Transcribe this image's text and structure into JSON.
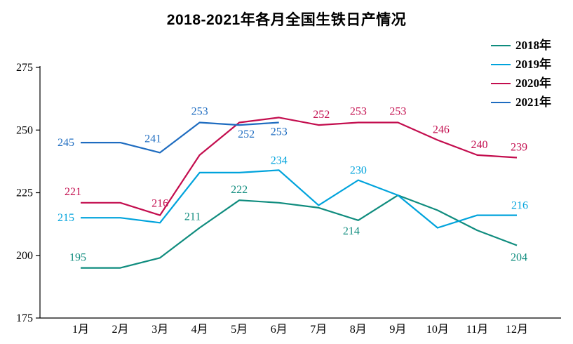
{
  "title": "2018-2021年各月全国生铁日产情况",
  "chart_data": {
    "type": "line",
    "title": "2018-2021年各月全国生铁日产情况",
    "xlabel": "",
    "ylabel": "",
    "categories": [
      "1月",
      "2月",
      "3月",
      "4月",
      "5月",
      "6月",
      "7月",
      "8月",
      "9月",
      "10月",
      "11月",
      "12月"
    ],
    "ylim": [
      175,
      275
    ],
    "yticks": [
      175,
      200,
      225,
      250,
      275
    ],
    "grid": false,
    "legend_position": "top-right",
    "series": [
      {
        "name": "2018年",
        "color": "#0f8c7e",
        "values": [
          195,
          195,
          199,
          211,
          222,
          221,
          219,
          214,
          224,
          218,
          210,
          204
        ],
        "labels": [
          {
            "i": 0,
            "text": "195",
            "pos": "above",
            "dx": -4,
            "dy": -2
          },
          {
            "i": 3,
            "text": "211",
            "pos": "above",
            "dx": -10,
            "dy": -3
          },
          {
            "i": 4,
            "text": "222",
            "pos": "above",
            "dx": 0,
            "dy": -2
          },
          {
            "i": 7,
            "text": "214",
            "pos": "below",
            "dx": -10,
            "dy": 2
          },
          {
            "i": 11,
            "text": "204",
            "pos": "below",
            "dx": 3,
            "dy": 4
          }
        ]
      },
      {
        "name": "2019年",
        "color": "#00a3dc",
        "values": [
          215,
          215,
          213,
          233,
          233,
          234,
          220,
          230,
          224,
          211,
          216,
          216
        ],
        "labels": [
          {
            "i": 0,
            "text": "215",
            "pos": "left",
            "dx": 0,
            "dy": 0
          },
          {
            "i": 5,
            "text": "234",
            "pos": "above",
            "dx": 0,
            "dy": -1
          },
          {
            "i": 7,
            "text": "230",
            "pos": "above",
            "dx": 0,
            "dy": -1
          },
          {
            "i": 11,
            "text": "216",
            "pos": "above",
            "dx": 4,
            "dy": -1
          }
        ]
      },
      {
        "name": "2020年",
        "color": "#c30d4e",
        "values": [
          221,
          221,
          216,
          240,
          253,
          255,
          252,
          253,
          253,
          246,
          240,
          239
        ],
        "labels": [
          {
            "i": 0,
            "text": "221",
            "pos": "above",
            "dx": -11,
            "dy": -3
          },
          {
            "i": 2,
            "text": "216",
            "pos": "above",
            "dx": 0,
            "dy": -4
          },
          {
            "i": 6,
            "text": "252",
            "pos": "above",
            "dx": 4,
            "dy": -2
          },
          {
            "i": 7,
            "text": "253",
            "pos": "above",
            "dx": 0,
            "dy": -3
          },
          {
            "i": 8,
            "text": "253",
            "pos": "above",
            "dx": 0,
            "dy": -3
          },
          {
            "i": 9,
            "text": "246",
            "pos": "above",
            "dx": 5,
            "dy": -2
          },
          {
            "i": 10,
            "text": "240",
            "pos": "above",
            "dx": 3,
            "dy": -2
          },
          {
            "i": 11,
            "text": "239",
            "pos": "above",
            "dx": 3,
            "dy": -2
          }
        ]
      },
      {
        "name": "2021年",
        "color": "#1e6cc0",
        "values": [
          245,
          245,
          241,
          253,
          252,
          253,
          null,
          null,
          null,
          null,
          null,
          null
        ],
        "labels": [
          {
            "i": 0,
            "text": "245",
            "pos": "left",
            "dx": 0,
            "dy": 0
          },
          {
            "i": 2,
            "text": "241",
            "pos": "above",
            "dx": -10,
            "dy": -7
          },
          {
            "i": 3,
            "text": "253",
            "pos": "above",
            "dx": 0,
            "dy": -3
          },
          {
            "i": 4,
            "text": "252",
            "pos": "below",
            "dx": 10,
            "dy": 0
          },
          {
            "i": 5,
            "text": "253",
            "pos": "below",
            "dx": 0,
            "dy": 0
          }
        ]
      }
    ]
  }
}
